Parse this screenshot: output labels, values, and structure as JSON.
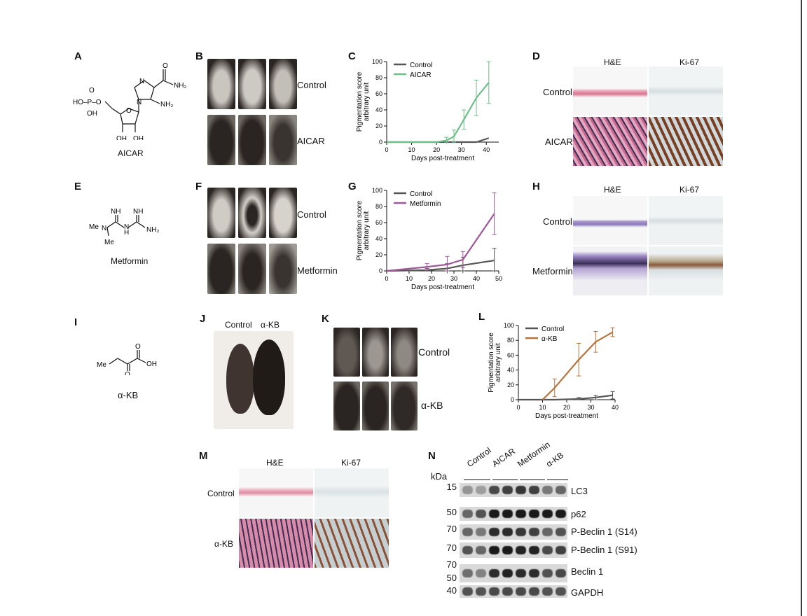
{
  "panels": {
    "A": {
      "label": "A",
      "caption": "AICAR"
    },
    "B": {
      "label": "B",
      "row_labels": [
        "Control",
        "AICAR"
      ]
    },
    "C": {
      "label": "C"
    },
    "D": {
      "label": "D",
      "col_labels": [
        "H&E",
        "Ki-67"
      ],
      "row_labels": [
        "Control",
        "AICAR"
      ]
    },
    "E": {
      "label": "E",
      "caption": "Metformin"
    },
    "F": {
      "label": "F",
      "row_labels": [
        "Control",
        "Metformin"
      ]
    },
    "G": {
      "label": "G"
    },
    "H": {
      "label": "H",
      "col_labels": [
        "H&E",
        "Ki-67"
      ],
      "row_labels": [
        "Control",
        "Metformin"
      ]
    },
    "I": {
      "label": "I",
      "caption": "α-KB"
    },
    "J": {
      "label": "J",
      "col_labels": [
        "Control",
        "α-KB"
      ]
    },
    "K": {
      "label": "K",
      "row_labels": [
        "Control",
        "α-KB"
      ]
    },
    "L": {
      "label": "L"
    },
    "M": {
      "label": "M",
      "col_labels": [
        "H&E",
        "Ki-67"
      ],
      "row_labels": [
        "Control",
        "α-KB"
      ]
    },
    "N": {
      "label": "N",
      "kda": "kDa",
      "lanes": [
        "Control",
        "AICAR",
        "Metformin",
        "α-KB"
      ],
      "rows": [
        {
          "name": "LC3",
          "mw": "15"
        },
        {
          "name": "p62",
          "mw": "50"
        },
        {
          "name": "P-Beclin 1 (S14)",
          "mw": "70"
        },
        {
          "name": "P-Beclin 1 (S91)",
          "mw": "70"
        },
        {
          "name": "Beclin 1",
          "mw": "70",
          "mw2": "50"
        },
        {
          "name": "GAPDH",
          "mw": "40"
        }
      ]
    }
  },
  "chem": {
    "aicar": {
      "nh2_top": "NH₂",
      "nh2_right": "NH₂",
      "o": "O",
      "n1": "N",
      "n2": "N",
      "hop": "HO–P–O",
      "oh_p": "OH",
      "o_p": "O",
      "ring_o": "O",
      "oh1": "OH",
      "oh2": "OH"
    },
    "metformin": {
      "nh1": "NH",
      "nh2": "NH",
      "me1": "Me",
      "me2": "Me",
      "n": "N",
      "nh": "H",
      "nh2b": "NH₂",
      "n2": "N"
    },
    "akb": {
      "me": "Me",
      "o1": "O",
      "o2": "O",
      "oh": "OH"
    }
  },
  "chart_data": [
    {
      "panel": "C",
      "type": "line",
      "xlabel": "Days post-treatment",
      "ylabel": "Pigmentation score",
      "ylabel2": "arbitrary unit",
      "xlim": [
        0,
        45
      ],
      "ylim": [
        0,
        100
      ],
      "xticks": [
        0,
        10,
        20,
        30,
        40
      ],
      "yticks": [
        0,
        20,
        40,
        60,
        80,
        100
      ],
      "legend": "top-left",
      "series": [
        {
          "name": "Control",
          "color": "#555555",
          "x": [
            0,
            20,
            24,
            27,
            31,
            36,
            41
          ],
          "y": [
            0,
            0,
            0,
            0,
            0,
            0,
            5
          ],
          "err": [
            0,
            0,
            0,
            0,
            0,
            0,
            0
          ]
        },
        {
          "name": "AICAR",
          "color": "#6dbf8a",
          "x": [
            0,
            20,
            24,
            27,
            31,
            36,
            41
          ],
          "y": [
            0,
            0,
            2,
            7,
            28,
            55,
            74
          ],
          "err": [
            0,
            0,
            4,
            8,
            12,
            22,
            26
          ]
        }
      ]
    },
    {
      "panel": "G",
      "type": "line",
      "xlabel": "Days post-treatment",
      "ylabel": "Pigmentation score",
      "ylabel2": "arbitrary unit",
      "xlim": [
        0,
        50
      ],
      "ylim": [
        0,
        100
      ],
      "xticks": [
        0,
        10,
        20,
        30,
        40,
        50
      ],
      "yticks": [
        0,
        20,
        40,
        60,
        80,
        100
      ],
      "legend": "top-left",
      "series": [
        {
          "name": "Control",
          "color": "#555555",
          "x": [
            0,
            18,
            27,
            34,
            48
          ],
          "y": [
            0,
            1,
            3,
            7,
            13
          ],
          "err": [
            0,
            2,
            6,
            10,
            15
          ]
        },
        {
          "name": "Metformin",
          "color": "#a0579a",
          "x": [
            0,
            18,
            27,
            34,
            48
          ],
          "y": [
            0,
            5,
            8,
            14,
            71
          ],
          "err": [
            0,
            4,
            10,
            10,
            26
          ]
        }
      ]
    },
    {
      "panel": "L",
      "type": "line",
      "xlabel": "Days post-treatment",
      "ylabel": "Pigmentation score",
      "ylabel2": "arbitrary unit",
      "xlim": [
        0,
        40
      ],
      "ylim": [
        0,
        100
      ],
      "xticks": [
        0,
        10,
        20,
        30,
        40
      ],
      "yticks": [
        0,
        20,
        40,
        60,
        80,
        100
      ],
      "legend": "top-left",
      "series": [
        {
          "name": "Control",
          "color": "#555555",
          "x": [
            0,
            10,
            15,
            25,
            32,
            39
          ],
          "y": [
            0,
            0,
            0,
            1,
            3,
            6
          ],
          "err": [
            0,
            0,
            0,
            2,
            3,
            5
          ]
        },
        {
          "name": "α-KB",
          "color": "#b8733a",
          "x": [
            10,
            15,
            25,
            32,
            39
          ],
          "y": [
            0,
            16,
            54,
            78,
            91
          ],
          "err": [
            0,
            12,
            22,
            14,
            6
          ]
        }
      ]
    }
  ],
  "colors": {
    "he_pink": "#e9a3b8",
    "he_purple": "#9a86c4",
    "ki67_bg": "#dfe6e8",
    "mouse_dark": "#1f1b19",
    "mouse_light": "#c9c5bf"
  }
}
